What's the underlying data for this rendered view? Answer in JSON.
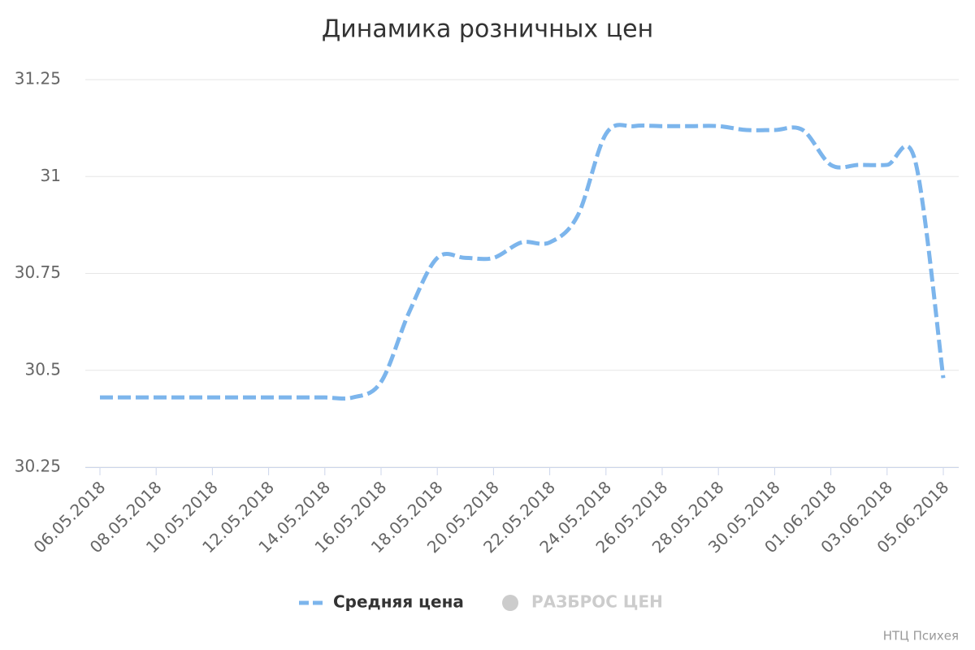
{
  "chart_data": {
    "type": "line",
    "title": "Динамика розничных цен",
    "categories": [
      "06.05.2018",
      null,
      "08.05.2018",
      null,
      "10.05.2018",
      null,
      "12.05.2018",
      null,
      "14.05.2018",
      null,
      "16.05.2018",
      null,
      "18.05.2018",
      null,
      "20.05.2018",
      null,
      "22.05.2018",
      null,
      "24.05.2018",
      null,
      "26.05.2018",
      null,
      "28.05.2018",
      null,
      "30.05.2018",
      null,
      "01.06.2018",
      null,
      "03.06.2018",
      null,
      "05.06.2018"
    ],
    "series": [
      {
        "name": "Средняя цена",
        "color": "#7cb5ec",
        "values": [
          30.43,
          30.43,
          30.43,
          30.43,
          30.43,
          30.43,
          30.43,
          30.43,
          30.43,
          30.43,
          30.47,
          30.65,
          30.79,
          30.79,
          30.79,
          30.83,
          30.83,
          30.9,
          31.11,
          31.13,
          31.13,
          31.13,
          31.13,
          31.12,
          31.12,
          31.12,
          31.03,
          31.03,
          31.03,
          31.04,
          30.48
        ]
      }
    ],
    "hidden_series": [
      {
        "name": "РАЗБРОС ЦЕН",
        "color": "#cccccc"
      }
    ],
    "ylim": [
      30.25,
      31.25
    ],
    "yticks": [
      30.25,
      30.5,
      30.75,
      31,
      31.25
    ],
    "grid": true,
    "credit": "НТЦ Психея"
  }
}
